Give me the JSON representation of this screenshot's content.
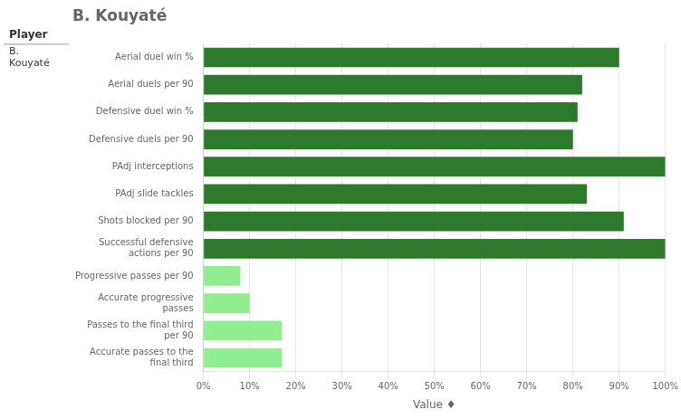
{
  "chart_data": {
    "type": "bar",
    "orientation": "horizontal",
    "title": "B. Kouyaté",
    "xlabel": "Value ♦",
    "annotations": [
      {
        "text": "Player"
      },
      {
        "text": "B.\nKouyaté"
      }
    ],
    "categories": [
      "Aerial duel win %",
      "Aerial duels per 90",
      "Defensive duel win %",
      "Defensive duels per 90",
      "PAdj interceptions",
      "PAdj slide tackles",
      "Shots blocked per 90",
      "Successful defensive\nactions per 90",
      "Progressive passes per 90",
      "Accurate progressive\npasses",
      "Passes to the final third\nper 90",
      "Accurate passes to the\nfinal third"
    ],
    "values": [
      90,
      82,
      81,
      80,
      100,
      83,
      91,
      100,
      8,
      10,
      17,
      17
    ],
    "colors": [
      "#2d7a2d",
      "#2d7a2d",
      "#2d7a2d",
      "#2d7a2d",
      "#2d7a2d",
      "#2d7a2d",
      "#2d7a2d",
      "#2d7a2d",
      "#90ee90",
      "#90ee90",
      "#90ee90",
      "#90ee90"
    ],
    "xlim": [
      0,
      100
    ],
    "xticks": [
      {
        "value": 0,
        "label": "0%"
      },
      {
        "value": 10,
        "label": "10%"
      },
      {
        "value": 20,
        "label": "20%"
      },
      {
        "value": 30,
        "label": "30%"
      },
      {
        "value": 40,
        "label": "40%"
      },
      {
        "value": 50,
        "label": "50%"
      },
      {
        "value": 60,
        "label": "60%"
      },
      {
        "value": 70,
        "label": "70%"
      },
      {
        "value": 80,
        "label": "80%"
      },
      {
        "value": 90,
        "label": "90%"
      },
      {
        "value": 100,
        "label": "100%"
      }
    ],
    "grid": true
  }
}
